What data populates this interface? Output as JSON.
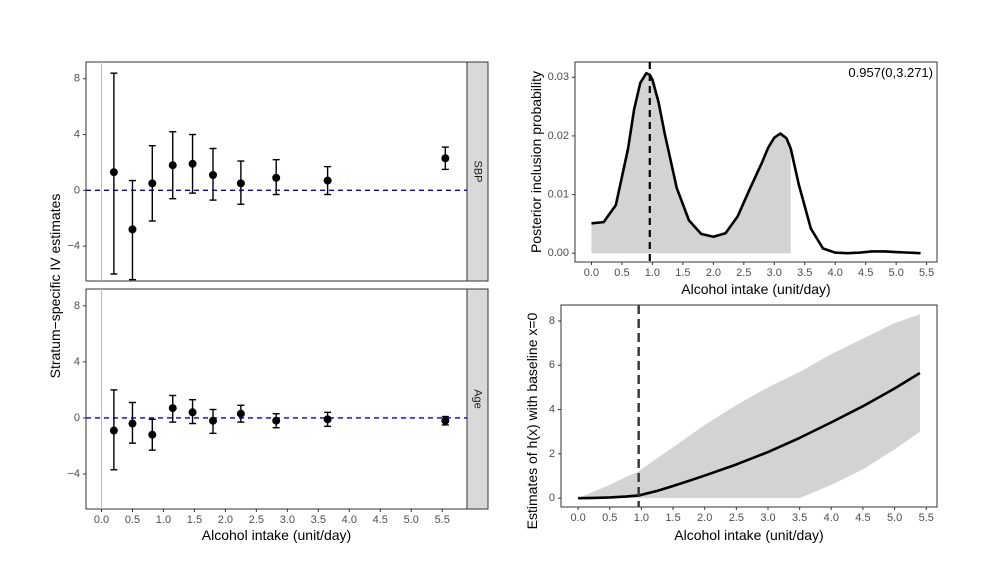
{
  "chart_data": [
    {
      "id": "stratum-facets",
      "type": "scatter",
      "error_bars": true,
      "ylabel": "Stratum−specific IV estimates",
      "xlabel": "Alcohol intake (unit/day)",
      "x_ticks": [
        "0.0",
        "0.5",
        "1.0",
        "1.5",
        "2.0",
        "2.5",
        "3.0",
        "3.5",
        "4.0",
        "4.5",
        "5.0",
        "5.5"
      ],
      "y_ticks": [
        "−4",
        "0",
        "4",
        "8"
      ],
      "xlim": [
        -0.25,
        5.9
      ],
      "ylim": [
        -6.5,
        9.2
      ],
      "reference_line": {
        "y": 0,
        "color": "#0000cc",
        "style": "dashed"
      },
      "vertical_line": {
        "x": 0,
        "color": "#bdbdbd"
      },
      "facets": [
        {
          "strip_label": "SBP",
          "points": [
            {
              "x": 0.2,
              "y": 1.3,
              "lo": -6.0,
              "hi": 8.4
            },
            {
              "x": 0.5,
              "y": -2.8,
              "lo": -6.4,
              "hi": 0.7
            },
            {
              "x": 0.82,
              "y": 0.5,
              "lo": -2.2,
              "hi": 3.2
            },
            {
              "x": 1.15,
              "y": 1.8,
              "lo": -0.6,
              "hi": 4.2
            },
            {
              "x": 1.47,
              "y": 1.9,
              "lo": -0.2,
              "hi": 4.0
            },
            {
              "x": 1.8,
              "y": 1.1,
              "lo": -0.7,
              "hi": 3.0
            },
            {
              "x": 2.25,
              "y": 0.5,
              "lo": -1.0,
              "hi": 2.1
            },
            {
              "x": 2.82,
              "y": 0.9,
              "lo": -0.3,
              "hi": 2.2
            },
            {
              "x": 3.65,
              "y": 0.7,
              "lo": -0.3,
              "hi": 1.7
            },
            {
              "x": 5.55,
              "y": 2.3,
              "lo": 1.5,
              "hi": 3.1
            }
          ]
        },
        {
          "strip_label": "Age",
          "points": [
            {
              "x": 0.2,
              "y": -0.9,
              "lo": -3.7,
              "hi": 2.0
            },
            {
              "x": 0.5,
              "y": -0.4,
              "lo": -1.8,
              "hi": 1.1
            },
            {
              "x": 0.82,
              "y": -1.2,
              "lo": -2.3,
              "hi": -0.1
            },
            {
              "x": 1.15,
              "y": 0.7,
              "lo": -0.3,
              "hi": 1.6
            },
            {
              "x": 1.47,
              "y": 0.4,
              "lo": -0.4,
              "hi": 1.3
            },
            {
              "x": 1.8,
              "y": -0.2,
              "lo": -1.1,
              "hi": 0.6
            },
            {
              "x": 2.25,
              "y": 0.3,
              "lo": -0.3,
              "hi": 0.9
            },
            {
              "x": 2.82,
              "y": -0.2,
              "lo": -0.7,
              "hi": 0.3
            },
            {
              "x": 3.65,
              "y": -0.1,
              "lo": -0.6,
              "hi": 0.4
            },
            {
              "x": 5.55,
              "y": -0.2,
              "lo": -0.5,
              "hi": 0.1
            }
          ]
        }
      ]
    },
    {
      "id": "posterior-inclusion",
      "type": "line",
      "ylabel": "Posterior inclusion probability",
      "xlabel": "Alcohol intake (unit/day)",
      "annotation": "0.957(0,3.271)",
      "x_ticks": [
        "0.0",
        "0.5",
        "1.0",
        "1.5",
        "2.0",
        "2.5",
        "3.0",
        "3.5",
        "4.0",
        "4.5",
        "5.0",
        "5.5"
      ],
      "y_ticks": [
        "0.00",
        "0.01",
        "0.02",
        "0.03"
      ],
      "xlim": [
        -0.27,
        5.67
      ],
      "ylim": [
        -0.0015,
        0.0326
      ],
      "vline": {
        "x": 0.957,
        "style": "dashed"
      },
      "shaded_region": [
        0,
        3.271
      ],
      "x": [
        0.0,
        0.2,
        0.4,
        0.6,
        0.7,
        0.8,
        0.9,
        0.957,
        1.0,
        1.1,
        1.2,
        1.4,
        1.6,
        1.8,
        2.0,
        2.2,
        2.4,
        2.6,
        2.8,
        2.9,
        3.0,
        3.1,
        3.2,
        3.271,
        3.4,
        3.6,
        3.8,
        4.0,
        4.2,
        4.4,
        4.6,
        4.8,
        5.0,
        5.2,
        5.4
      ],
      "y": [
        0.0051,
        0.0053,
        0.0082,
        0.0178,
        0.0245,
        0.029,
        0.0307,
        0.0304,
        0.0296,
        0.0258,
        0.0205,
        0.0111,
        0.0056,
        0.0033,
        0.0028,
        0.0034,
        0.0063,
        0.011,
        0.0155,
        0.018,
        0.0197,
        0.0204,
        0.0196,
        0.0178,
        0.0118,
        0.0042,
        0.0008,
        0.0001,
        0.0,
        0.0001,
        0.0003,
        0.0003,
        0.0002,
        0.0001,
        0.0
      ]
    },
    {
      "id": "h-estimates",
      "type": "line",
      "ylabel": "Estimates of h(x) with baseline x=0",
      "xlabel": "Alcohol intake (unit/day)",
      "x_ticks": [
        "0.0",
        "0.5",
        "1.0",
        "1.5",
        "2.0",
        "2.5",
        "3.0",
        "3.5",
        "4.0",
        "4.5",
        "5.0",
        "5.5"
      ],
      "y_ticks": [
        "0",
        "2",
        "4",
        "6",
        "8"
      ],
      "xlim": [
        -0.27,
        5.67
      ],
      "ylim": [
        -0.4,
        8.72
      ],
      "vline": {
        "x": 0.957,
        "style": "dashed"
      },
      "x": [
        0.0,
        0.25,
        0.5,
        0.75,
        0.957,
        1.0,
        1.25,
        1.5,
        1.75,
        2.0,
        2.5,
        3.0,
        3.5,
        4.0,
        4.5,
        5.0,
        5.4
      ],
      "y": [
        0.0,
        0.01,
        0.03,
        0.07,
        0.12,
        0.15,
        0.33,
        0.55,
        0.78,
        1.02,
        1.52,
        2.08,
        2.72,
        3.42,
        4.15,
        4.95,
        5.65
      ],
      "band_lower": [
        0.0,
        0.0,
        0.0,
        0.0,
        0.0,
        0.0,
        0.0,
        0.0,
        0.0,
        0.0,
        0.0,
        0.0,
        0.0,
        0.6,
        1.3,
        2.2,
        3.0
      ],
      "band_upper": [
        0.0,
        0.3,
        0.6,
        0.95,
        1.2,
        1.3,
        1.8,
        2.3,
        2.8,
        3.3,
        4.2,
        5.0,
        5.7,
        6.5,
        7.2,
        7.9,
        8.3
      ]
    }
  ]
}
